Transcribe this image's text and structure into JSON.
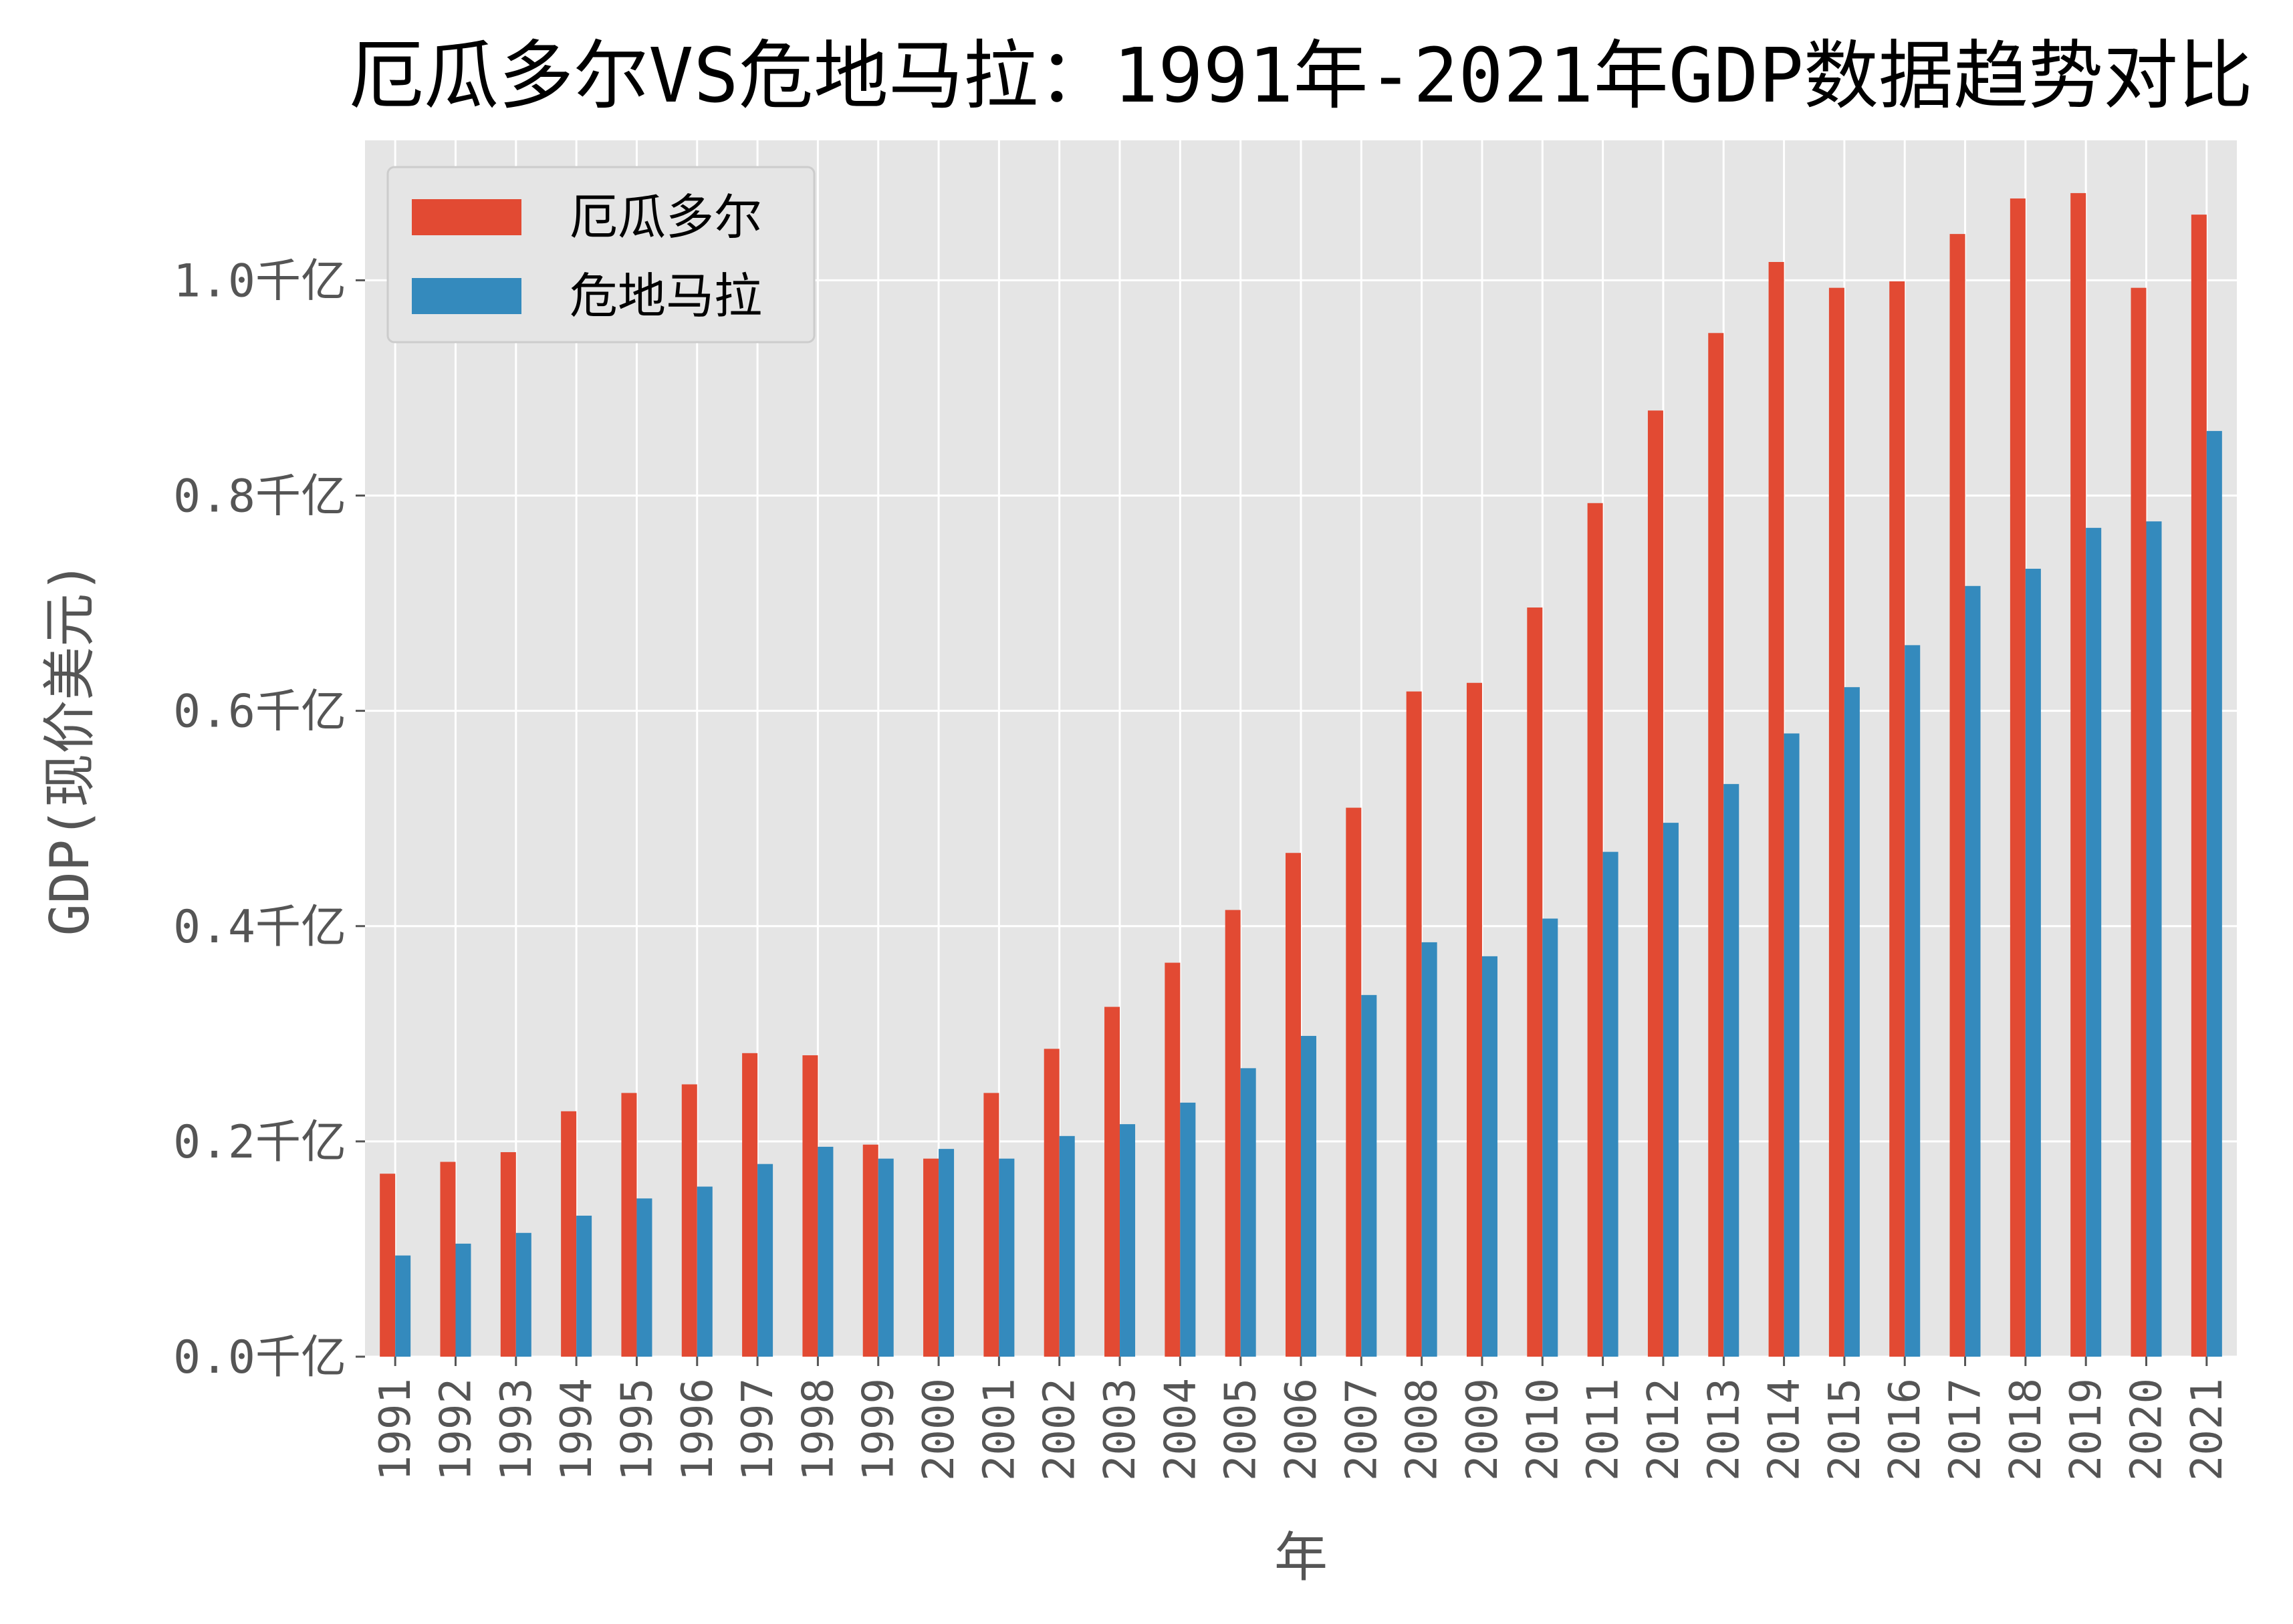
{
  "chart_data": {
    "type": "bar",
    "title": "厄瓜多尔VS危地马拉：1991年-2021年GDP数据趋势对比",
    "xlabel": "年",
    "ylabel": "GDP(现价美元)",
    "ylim": [
      0,
      1.13
    ],
    "yticks": [
      {
        "value": 0.0,
        "label": "0.0千亿"
      },
      {
        "value": 0.2,
        "label": "0.2千亿"
      },
      {
        "value": 0.4,
        "label": "0.4千亿"
      },
      {
        "value": 0.6,
        "label": "0.6千亿"
      },
      {
        "value": 0.8,
        "label": "0.8千亿"
      },
      {
        "value": 1.0,
        "label": "1.0千亿"
      }
    ],
    "grid": true,
    "legend_position": "top-left",
    "categories": [
      "1991",
      "1992",
      "1993",
      "1994",
      "1995",
      "1996",
      "1997",
      "1998",
      "1999",
      "2000",
      "2001",
      "2002",
      "2003",
      "2004",
      "2005",
      "2006",
      "2007",
      "2008",
      "2009",
      "2010",
      "2011",
      "2012",
      "2013",
      "2014",
      "2015",
      "2016",
      "2017",
      "2018",
      "2019",
      "2020",
      "2021"
    ],
    "series": [
      {
        "name": "厄瓜多尔",
        "color": "#E24A33",
        "values": [
          0.17,
          0.181,
          0.19,
          0.228,
          0.245,
          0.253,
          0.282,
          0.28,
          0.197,
          0.184,
          0.245,
          0.286,
          0.325,
          0.366,
          0.415,
          0.468,
          0.51,
          0.618,
          0.626,
          0.696,
          0.793,
          0.879,
          0.951,
          1.017,
          0.993,
          0.999,
          1.043,
          1.076,
          1.081,
          0.993,
          1.061
        ]
      },
      {
        "name": "危地马拉",
        "color": "#348ABD",
        "values": [
          0.094,
          0.105,
          0.115,
          0.131,
          0.147,
          0.158,
          0.179,
          0.195,
          0.184,
          0.193,
          0.184,
          0.205,
          0.216,
          0.236,
          0.268,
          0.298,
          0.336,
          0.385,
          0.372,
          0.407,
          0.469,
          0.496,
          0.532,
          0.579,
          0.622,
          0.661,
          0.716,
          0.732,
          0.77,
          0.776,
          0.86
        ]
      }
    ]
  }
}
